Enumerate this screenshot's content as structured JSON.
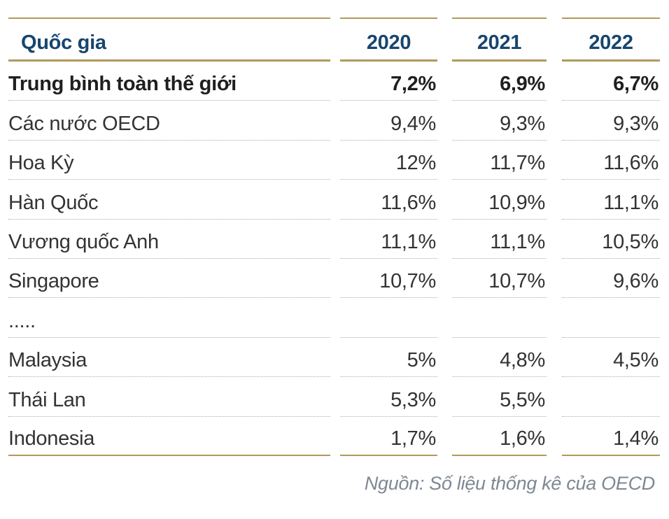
{
  "chart_data": {
    "type": "table",
    "header": {
      "country_col": "Quốc gia",
      "years": [
        "2020",
        "2021",
        "2022"
      ]
    },
    "rows": [
      {
        "label": "Trung bình toàn thế giới",
        "values": [
          "7,2%",
          "6,9%",
          "6,7%"
        ]
      },
      {
        "label": "Các nước OECD",
        "values": [
          "9,4%",
          "9,3%",
          "9,3%"
        ]
      },
      {
        "label": "Hoa Kỳ",
        "values": [
          "12%",
          "11,7%",
          "11,6%"
        ]
      },
      {
        "label": "Hàn Quốc",
        "values": [
          "11,6%",
          "10,9%",
          "11,1%"
        ]
      },
      {
        "label": "Vương quốc Anh",
        "values": [
          "11,1%",
          "11,1%",
          "10,5%"
        ]
      },
      {
        "label": "Singapore",
        "values": [
          "10,7%",
          "10,7%",
          "9,6%"
        ]
      },
      {
        "label": ".....",
        "values": [
          "",
          "",
          ""
        ]
      },
      {
        "label": "Malaysia",
        "values": [
          "5%",
          "4,8%",
          "4,5%"
        ]
      },
      {
        "label": "Thái Lan",
        "values": [
          "5,3%",
          "5,5%",
          ""
        ]
      },
      {
        "label": "Indonesia",
        "values": [
          "1,7%",
          "1,6%",
          "1,4%"
        ]
      }
    ],
    "source": "Nguồn: Số liệu thống kê của OECD",
    "layout": {
      "grid": "off",
      "value_alignment": "right"
    }
  },
  "colors": {
    "accent_gold": "#b2995c",
    "header_navy": "#17466e",
    "body_text": "#333333",
    "separator_dotted": "#ababab",
    "source_text": "#7e8893"
  }
}
